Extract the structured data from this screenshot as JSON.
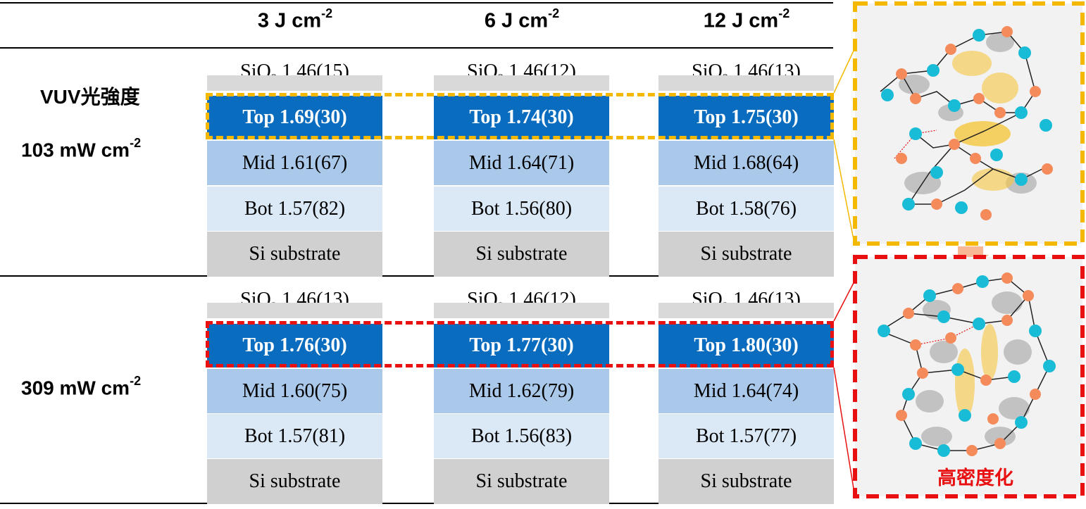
{
  "header": {
    "columns": [
      {
        "value": "3 J cm",
        "exp": "-2"
      },
      {
        "value": "6 J cm",
        "exp": "-2"
      },
      {
        "value": "12 J cm",
        "exp": "-2"
      }
    ]
  },
  "row_labels": {
    "vuv_label": "VUV光強度",
    "row1": {
      "value": "103 mW cm",
      "exp": "-2"
    },
    "row2": {
      "value": "309 mW cm",
      "exp": "-2"
    }
  },
  "rows": [
    {
      "cells": [
        {
          "sio2_sym": "SiO",
          "sio2_sub": "2",
          "sio2_val": " 1.46(15)",
          "top": "Top 1.69(30)",
          "mid": "Mid 1.61(67)",
          "bot": "Bot 1.57(82)",
          "sub": "Si substrate"
        },
        {
          "sio2_sym": "SiO",
          "sio2_sub": "2",
          "sio2_val": " 1.46(12)",
          "top": "Top 1.74(30)",
          "mid": "Mid 1.64(71)",
          "bot": "Bot 1.56(80)",
          "sub": "Si substrate"
        },
        {
          "sio2_sym": "SiO",
          "sio2_sub": "2",
          "sio2_val": " 1.46(13)",
          "top": "Top 1.75(30)",
          "mid": "Mid 1.68(64)",
          "bot": "Bot 1.58(76)",
          "sub": "Si substrate"
        }
      ]
    },
    {
      "cells": [
        {
          "sio2_sym": "SiO",
          "sio2_sub": "2",
          "sio2_val": " 1.46(13)",
          "top": "Top 1.76(30)",
          "mid": "Mid 1.60(75)",
          "bot": "Bot 1.57(81)",
          "sub": "Si substrate"
        },
        {
          "sio2_sym": "SiO",
          "sio2_sub": "2",
          "sio2_val": " 1.46(12)",
          "top": "Top 1.77(30)",
          "mid": "Mid 1.62(79)",
          "bot": "Bot 1.56(83)",
          "sub": "Si substrate"
        },
        {
          "sio2_sym": "SiO",
          "sio2_sub": "2",
          "sio2_val": " 1.46(13)",
          "top": "Top 1.80(30)",
          "mid": "Mid 1.64(74)",
          "bot": "Bot 1.57(77)",
          "sub": "Si substrate"
        }
      ]
    }
  ],
  "illustration": {
    "densification_label": "高密度化"
  },
  "colors": {
    "top_layer": "#0a6cbf",
    "mid_layer": "#a9c8ea",
    "bot_layer": "#dbe8f6",
    "substrate": "#d0d0d0",
    "sio2_layer": "#d9d9d9",
    "highlight_row1": "#f5b800",
    "highlight_row2": "#e81010",
    "atom_si": "#18bcd6",
    "atom_o": "#f58a5a"
  }
}
